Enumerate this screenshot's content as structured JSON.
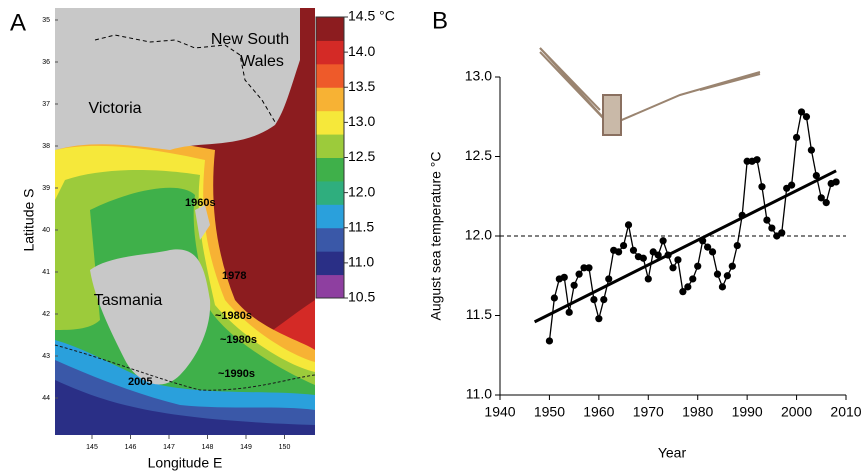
{
  "chart_data": [
    {
      "type": "map",
      "title": "A",
      "xlabel": "Longitude E",
      "ylabel": "Latitude S",
      "xticks": [
        145,
        146,
        147,
        148,
        149,
        150
      ],
      "yticks": [
        35,
        36,
        37,
        38,
        39,
        40,
        41,
        42,
        43,
        44
      ],
      "annotations": [
        "New South Wales",
        "Victoria",
        "Tasmania",
        "1960s",
        "1978",
        "~1980s",
        "~1980s",
        "~1990s",
        "2005"
      ],
      "colorbar": {
        "lim": [
          10.5,
          14.5
        ],
        "ticks": [
          10.5,
          {
            "value": 11.0,
            "label": "11.0"
          },
          11.5,
          {
            "value": 12.0,
            "label": "12.0"
          },
          12.5,
          {
            "value": 13.0,
            "label": "13.0"
          },
          13.5,
          {
            "value": 14.0,
            "label": "14.0"
          },
          {
            "value": 14.5,
            "label": "14.5 °C"
          }
        ],
        "colors": [
          "#8e3fa0",
          "#2a2f86",
          "#3a58a8",
          "#2aa0dc",
          "#2fae7e",
          "#3fb04a",
          "#9ccb3b",
          "#f6e83a",
          "#f7b234",
          "#ee5a2a",
          "#d42a26",
          "#8c1c1f"
        ]
      }
    },
    {
      "type": "line",
      "title": "B",
      "xlabel": "Year",
      "ylabel": "August sea temperature °C",
      "xlim": [
        1940,
        2010
      ],
      "ylim": [
        11.0,
        13.0
      ],
      "xticks": [
        1940,
        1950,
        1960,
        1970,
        1980,
        1990,
        2000,
        2010
      ],
      "yticks": [
        {
          "value": 11.0,
          "label": "11.0"
        },
        11.5,
        {
          "value": 12.0,
          "label": "12.0"
        },
        12.5,
        {
          "value": 13.0,
          "label": "13.0"
        }
      ],
      "hlines": [
        12.0
      ],
      "series": [
        {
          "color": "#000000",
          "x": [
            1950,
            1951,
            1952,
            1953,
            1954,
            1955,
            1956,
            1957,
            1958,
            1959,
            1960,
            1961,
            1962,
            1963,
            1964,
            1965,
            1966,
            1967,
            1968,
            1969,
            1970,
            1971,
            1972,
            1973,
            1974,
            1975,
            1976,
            1977,
            1978,
            1979,
            1980,
            1981,
            1982,
            1983,
            1984,
            1985,
            1986,
            1987,
            1988,
            1989,
            1990,
            1991,
            1992,
            1993,
            1994,
            1995,
            1996,
            1997,
            1998,
            1999,
            2000,
            2001,
            2002,
            2003,
            2004,
            2005,
            2006,
            2007,
            2008
          ],
          "values": [
            11.34,
            11.61,
            11.73,
            11.74,
            11.52,
            11.69,
            11.76,
            11.8,
            11.8,
            11.6,
            11.48,
            11.6,
            11.73,
            11.91,
            11.9,
            11.94,
            12.07,
            11.91,
            11.87,
            11.86,
            11.73,
            11.9,
            11.88,
            11.97,
            11.88,
            11.8,
            11.85,
            11.65,
            11.68,
            11.73,
            11.81,
            11.97,
            11.93,
            11.9,
            11.76,
            11.68,
            11.75,
            11.81,
            11.94,
            12.13,
            12.47,
            12.47,
            12.48,
            12.31,
            12.1,
            12.05,
            12.0,
            12.02,
            12.3,
            12.32,
            12.62,
            12.78,
            12.75,
            12.54,
            12.38,
            12.24,
            12.21,
            12.33,
            12.34
          ]
        },
        {
          "color": "#000000",
          "x": [
            1947,
            2008
          ],
          "values": [
            11.46,
            12.41
          ]
        }
      ]
    }
  ]
}
